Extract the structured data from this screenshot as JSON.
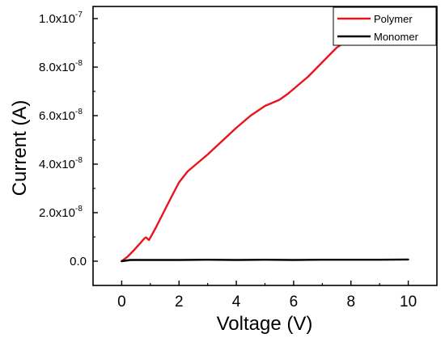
{
  "chart_data": {
    "type": "line",
    "xlabel": "Voltage (V)",
    "ylabel": "Current (A)",
    "xlim": [
      -1,
      11
    ],
    "ylim": [
      -1e-08,
      1.05e-07
    ],
    "x_ticks": [
      0,
      2,
      4,
      6,
      8,
      10
    ],
    "x_tick_labels": [
      "0",
      "2",
      "4",
      "6",
      "8",
      "10"
    ],
    "y_ticks": [
      0,
      2e-08,
      4e-08,
      6e-08,
      8e-08,
      1e-07
    ],
    "y_tick_labels": [
      "0.0",
      "2.0x10",
      "4.0x10",
      "6.0x10",
      "8.0x10",
      "1.0x10"
    ],
    "y_tick_exponents": [
      "",
      "-8",
      "-8",
      "-8",
      "-8",
      "-7"
    ],
    "grid": false,
    "legend": "top-right",
    "series": [
      {
        "name": "Polymer",
        "color": "#e8141c",
        "x": [
          0,
          0.2,
          0.4,
          0.6,
          0.8,
          0.85,
          0.95,
          1.2,
          1.5,
          1.8,
          2.0,
          2.3,
          2.7,
          3.0,
          3.5,
          4.0,
          4.5,
          5.0,
          5.5,
          5.8,
          6.0,
          6.5,
          7.0,
          7.5,
          8.0,
          8.3,
          8.5
        ],
        "y": [
          0,
          1.8e-09,
          4.2e-09,
          6.8e-09,
          9.5e-09,
          9.8e-09,
          8.7e-09,
          1.4e-08,
          2.1e-08,
          2.8e-08,
          3.25e-08,
          3.7e-08,
          4.1e-08,
          4.4e-08,
          4.95e-08,
          5.5e-08,
          6e-08,
          6.4e-08,
          6.65e-08,
          6.9e-08,
          7.1e-08,
          7.6e-08,
          8.2e-08,
          8.8e-08,
          9.2e-08,
          9.45e-08,
          9.6e-08
        ]
      },
      {
        "name": "Monomer",
        "color": "#000000",
        "x": [
          0,
          0.3,
          1,
          2,
          3,
          4,
          5,
          6,
          7,
          8,
          9,
          10
        ],
        "y": [
          0,
          5e-10,
          5e-10,
          5e-10,
          6e-10,
          5e-10,
          6e-10,
          5e-10,
          6e-10,
          6e-10,
          6e-10,
          7e-10
        ]
      }
    ]
  }
}
